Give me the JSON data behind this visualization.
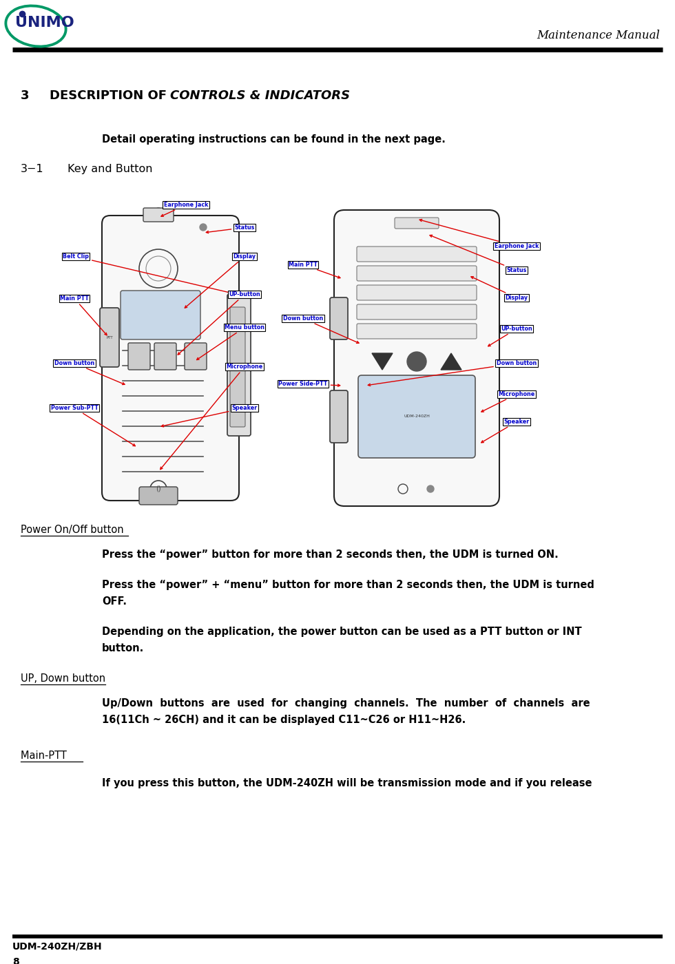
{
  "page_width": 9.8,
  "page_height": 14.0,
  "dpi": 100,
  "bg_color": "#ffffff",
  "line_color": "#000000",
  "header_text": "Maintenance Manual",
  "header_text_fontsize": 12,
  "header_text_style": "italic",
  "header_text_family": "serif",
  "logo_text": "UNIMO",
  "logo_color": "#1a237e",
  "logo_circle_color": "#009966",
  "section_number": "3",
  "section_title_plain": "DESCRIPTION OF ",
  "section_title_italic": "CONTROLS & INDICATORS",
  "section_fontsize": 13,
  "detail_text": "Detail operating instructions can be found in the next page.",
  "detail_fontsize": 10.5,
  "subsection_label": "3−1",
  "subsection_title": "Key and Button",
  "subsection_fontsize": 11.5,
  "power_heading": "Power On/Off button",
  "power_p1": "Press the “power” button for more than 2 seconds then, the UDM is turned ON.",
  "power_p2": "Press the “power” + “menu” button for more than 2 seconds then, the UDM is turned",
  "power_p2b": "OFF.",
  "power_p3": "Depending on the application, the power button can be used as a PTT button or INT",
  "power_p3b": "button.",
  "up_heading": "UP, Down button",
  "up_p1": "Up/Down  buttons  are  used  for  changing  channels.  The  number  of  channels  are",
  "up_p1b": "16(11Ch ~ 26CH) and it can be displayed C11~C26 or H11~H26.",
  "ptt_heading": "Main-PTT   ",
  "ptt_p1": "If you press this button, the UDM-240ZH will be transmission mode and if you release",
  "body_fontsize": 10.5,
  "body_font": "sans-serif",
  "label_fontsize": 5.8,
  "label_color": "#0000cc",
  "label_bg": "#ffffff",
  "label_border": "#000000",
  "arrow_color": "#dd0000",
  "footer_model": "UDM-240ZH/ZBH",
  "footer_page": "8",
  "footer_fontsize": 10
}
